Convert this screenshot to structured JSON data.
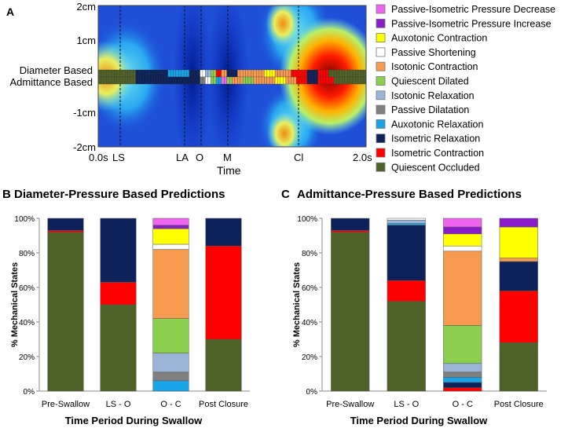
{
  "panel_a": {
    "letter": "A",
    "y_ticks": [
      "2cm",
      "1cm",
      "-1cm",
      "-2cm"
    ],
    "row_labels": [
      "Diameter Based",
      "Admittance Based"
    ],
    "x_event_labels": [
      "0.0s",
      "LS",
      "LA",
      "O",
      "M",
      "Cl",
      "2.0s"
    ],
    "x_axis_label": "Time"
  },
  "legend": {
    "items": [
      {
        "label": "Passive-Isometric Pressure Decrease",
        "color": "#ee66ee"
      },
      {
        "label": "Passive-Isometric Pressure Increase",
        "color": "#8a1cc9"
      },
      {
        "label": "Auxotonic Contraction",
        "color": "#ffff00"
      },
      {
        "label": "Passive Shortening",
        "color": "#ffffff"
      },
      {
        "label": "Isotonic Contraction",
        "color": "#f59a4e"
      },
      {
        "label": "Quiescent Dilated",
        "color": "#8ccf4f"
      },
      {
        "label": "Isotonic Relaxation",
        "color": "#9ab5d8"
      },
      {
        "label": "Passive Dilatation",
        "color": "#808080"
      },
      {
        "label": "Auxotonic Relaxation",
        "color": "#18a4e6"
      },
      {
        "label": "Isometric Relaxation",
        "color": "#0d215a"
      },
      {
        "label": "Isometric Contraction",
        "color": "#ff0000"
      },
      {
        "label": "Quiescent Occluded",
        "color": "#4f6228"
      }
    ]
  },
  "chart_data": [
    {
      "type": "bar",
      "stacked": true,
      "panel": "B",
      "title": "Diameter-Pressure Based Predictions",
      "xlabel": "Time Period During Swallow",
      "ylabel": "% Mechanical States",
      "ylim": [
        0,
        100
      ],
      "ytick_labels": [
        "0%",
        "20%",
        "40%",
        "60%",
        "80%",
        "100%"
      ],
      "categories": [
        "Pre-Swallow",
        "LS - O",
        "O - C",
        "Post Closure"
      ],
      "series": [
        {
          "name": "Quiescent Occluded",
          "color": "#4f6228",
          "values": [
            92,
            50,
            0,
            30
          ]
        },
        {
          "name": "Isometric Contraction",
          "color": "#ff0000",
          "values": [
            1,
            13,
            0,
            54
          ]
        },
        {
          "name": "Isometric Relaxation",
          "color": "#0d215a",
          "values": [
            7,
            37,
            0,
            16
          ]
        },
        {
          "name": "Auxotonic Relaxation",
          "color": "#18a4e6",
          "values": [
            0,
            0,
            6,
            0
          ]
        },
        {
          "name": "Passive Dilatation",
          "color": "#808080",
          "values": [
            0,
            0,
            5,
            0
          ]
        },
        {
          "name": "Isotonic Relaxation",
          "color": "#9ab5d8",
          "values": [
            0,
            0,
            11,
            0
          ]
        },
        {
          "name": "Quiescent Dilated",
          "color": "#8ccf4f",
          "values": [
            0,
            0,
            20,
            0
          ]
        },
        {
          "name": "Isotonic Contraction",
          "color": "#f59a4e",
          "values": [
            0,
            0,
            40,
            0
          ]
        },
        {
          "name": "Passive Shortening",
          "color": "#ffffff",
          "values": [
            0,
            0,
            3,
            0
          ]
        },
        {
          "name": "Auxotonic Contraction",
          "color": "#ffff00",
          "values": [
            0,
            0,
            9,
            0
          ]
        },
        {
          "name": "Passive-Isometric Pressure Increase",
          "color": "#8a1cc9",
          "values": [
            0,
            0,
            2,
            0
          ]
        },
        {
          "name": "Passive-Isometric Pressure Decrease",
          "color": "#ee66ee",
          "values": [
            0,
            0,
            4,
            0
          ]
        }
      ]
    },
    {
      "type": "bar",
      "stacked": true,
      "panel": "C",
      "title": "Admittance-Pressure Based Predictions",
      "xlabel": "Time Period During Swallow",
      "ylabel": "% Mechanical States",
      "ylim": [
        0,
        100
      ],
      "ytick_labels": [
        "0%",
        "20%",
        "40%",
        "60%",
        "80%",
        "100%"
      ],
      "categories": [
        "Pre-Swallow",
        "LS - O",
        "O - C",
        "Post Closure"
      ],
      "series": [
        {
          "name": "Quiescent Occluded",
          "color": "#4f6228",
          "values": [
            92,
            52,
            0,
            28
          ]
        },
        {
          "name": "Isometric Contraction",
          "color": "#ff0000",
          "values": [
            1,
            12,
            2,
            30
          ]
        },
        {
          "name": "Isometric Relaxation",
          "color": "#0d215a",
          "values": [
            7,
            32,
            3,
            17
          ]
        },
        {
          "name": "Auxotonic Relaxation",
          "color": "#18a4e6",
          "values": [
            0,
            1,
            3,
            0
          ]
        },
        {
          "name": "Passive Dilatation",
          "color": "#808080",
          "values": [
            0,
            0,
            3,
            0
          ]
        },
        {
          "name": "Isotonic Relaxation",
          "color": "#9ab5d8",
          "values": [
            0,
            2,
            5,
            0
          ]
        },
        {
          "name": "Quiescent Dilated",
          "color": "#8ccf4f",
          "values": [
            0,
            0,
            22,
            0
          ]
        },
        {
          "name": "Isotonic Contraction",
          "color": "#f59a4e",
          "values": [
            0,
            0,
            43,
            2
          ]
        },
        {
          "name": "Passive Shortening",
          "color": "#ffffff",
          "values": [
            0,
            1,
            3,
            0
          ]
        },
        {
          "name": "Auxotonic Contraction",
          "color": "#ffff00",
          "values": [
            0,
            0,
            7,
            18
          ]
        },
        {
          "name": "Passive-Isometric Pressure Increase",
          "color": "#8a1cc9",
          "values": [
            0,
            0,
            4,
            5
          ]
        },
        {
          "name": "Passive-Isometric Pressure Decrease",
          "color": "#ee66ee",
          "values": [
            0,
            0,
            5,
            0
          ]
        }
      ]
    }
  ]
}
